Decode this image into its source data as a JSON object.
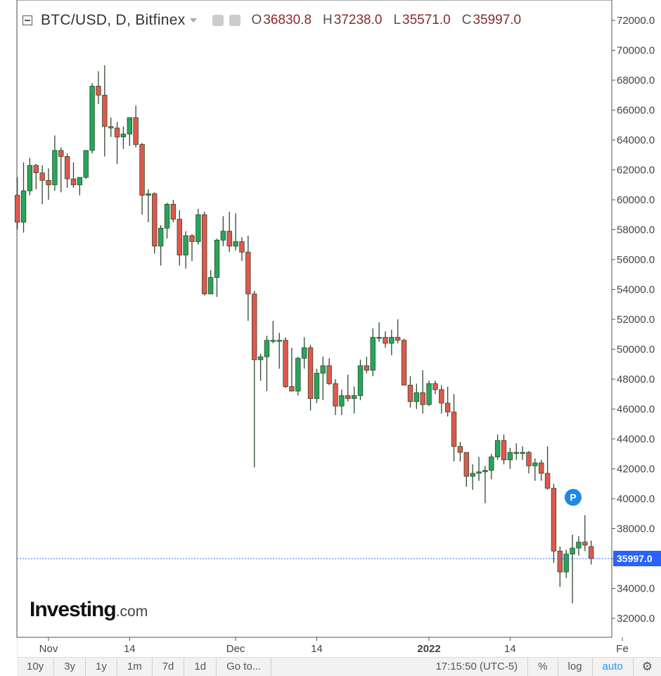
{
  "header": {
    "symbol": "BTC/USD, D, Bitfinex",
    "ohlc": [
      {
        "label": "O",
        "value": "36830.8"
      },
      {
        "label": "H",
        "value": "37238.0"
      },
      {
        "label": "L",
        "value": "35571.0"
      },
      {
        "label": "C",
        "value": "35997.0"
      }
    ]
  },
  "logo": {
    "main": "Investing",
    "suffix": ".com"
  },
  "badge": "P",
  "last_price_label": "35997.0",
  "footer": {
    "ranges": [
      "10y",
      "3y",
      "1y",
      "1m",
      "7d",
      "1d",
      "Go to..."
    ],
    "time": "17:15:50 (UTC-5)",
    "options": [
      "%",
      "log",
      "auto"
    ]
  },
  "colors": {
    "up": "#26a65b",
    "down": "#e0584d",
    "last_price": "#2962ff",
    "badge": "#1e88e5"
  },
  "icons": [
    "collapse-icon",
    "caret-down-icon",
    "settings-icon",
    "gear-icon"
  ],
  "chart_data": {
    "type": "candlestick",
    "ylim": [
      31000,
      72800
    ],
    "y_ticks": [
      "72000.0",
      "70000.0",
      "68000.0",
      "66000.0",
      "64000.0",
      "62000.0",
      "60000.0",
      "58000.0",
      "56000.0",
      "54000.0",
      "52000.0",
      "50000.0",
      "48000.0",
      "46000.0",
      "44000.0",
      "42000.0",
      "40000.0",
      "38000.0",
      "36000.0",
      "34000.0",
      "32000.0"
    ],
    "x_ticks": [
      {
        "label": "Nov",
        "date": "2021-11-01"
      },
      {
        "label": "14",
        "date": "2021-11-14"
      },
      {
        "label": "Dec",
        "date": "2021-12-01"
      },
      {
        "label": "14",
        "date": "2021-12-14"
      },
      {
        "label": "2022",
        "date": "2022-01-01"
      },
      {
        "label": "14",
        "date": "2022-01-14"
      },
      {
        "label": "Fe",
        "date": "2022-02-01"
      }
    ],
    "last_price": 35997,
    "candles": [
      {
        "date": "2021-10-27",
        "o": 60300,
        "h": 61500,
        "l": 58000,
        "c": 58500
      },
      {
        "date": "2021-10-28",
        "o": 58500,
        "h": 62500,
        "l": 57800,
        "c": 60600
      },
      {
        "date": "2021-10-29",
        "o": 60600,
        "h": 62800,
        "l": 60300,
        "c": 62300
      },
      {
        "date": "2021-10-30",
        "o": 62300,
        "h": 62400,
        "l": 60700,
        "c": 61800
      },
      {
        "date": "2021-10-31",
        "o": 61800,
        "h": 62300,
        "l": 59700,
        "c": 61300
      },
      {
        "date": "2021-11-01",
        "o": 61300,
        "h": 62100,
        "l": 60000,
        "c": 61000
      },
      {
        "date": "2021-11-02",
        "o": 61000,
        "h": 64300,
        "l": 60600,
        "c": 63300
      },
      {
        "date": "2021-11-03",
        "o": 63300,
        "h": 63500,
        "l": 60500,
        "c": 62900
      },
      {
        "date": "2021-11-04",
        "o": 62900,
        "h": 63100,
        "l": 60800,
        "c": 61400
      },
      {
        "date": "2021-11-05",
        "o": 61400,
        "h": 62500,
        "l": 60800,
        "c": 61000
      },
      {
        "date": "2021-11-06",
        "o": 61000,
        "h": 61500,
        "l": 60300,
        "c": 61500
      },
      {
        "date": "2021-11-07",
        "o": 61500,
        "h": 63300,
        "l": 61400,
        "c": 63300
      },
      {
        "date": "2021-11-08",
        "o": 63300,
        "h": 67800,
        "l": 63100,
        "c": 67600
      },
      {
        "date": "2021-11-09",
        "o": 67600,
        "h": 68600,
        "l": 66400,
        "c": 67000
      },
      {
        "date": "2021-11-10",
        "o": 67000,
        "h": 69000,
        "l": 62900,
        "c": 64900
      },
      {
        "date": "2021-11-11",
        "o": 64900,
        "h": 65500,
        "l": 64200,
        "c": 64800
      },
      {
        "date": "2021-11-12",
        "o": 64800,
        "h": 65200,
        "l": 62400,
        "c": 64200
      },
      {
        "date": "2021-11-13",
        "o": 64200,
        "h": 64900,
        "l": 63400,
        "c": 64400
      },
      {
        "date": "2021-11-14",
        "o": 64400,
        "h": 65500,
        "l": 63600,
        "c": 65500
      },
      {
        "date": "2021-11-15",
        "o": 65500,
        "h": 66300,
        "l": 63500,
        "c": 63700
      },
      {
        "date": "2021-11-16",
        "o": 63700,
        "h": 63800,
        "l": 59000,
        "c": 60300
      },
      {
        "date": "2021-11-17",
        "o": 60300,
        "h": 60700,
        "l": 58500,
        "c": 60400
      },
      {
        "date": "2021-11-18",
        "o": 60400,
        "h": 60500,
        "l": 56400,
        "c": 56900
      },
      {
        "date": "2021-11-19",
        "o": 56900,
        "h": 58300,
        "l": 55600,
        "c": 58100
      },
      {
        "date": "2021-11-20",
        "o": 58100,
        "h": 59800,
        "l": 57400,
        "c": 59700
      },
      {
        "date": "2021-11-21",
        "o": 59700,
        "h": 60000,
        "l": 58500,
        "c": 58700
      },
      {
        "date": "2021-11-22",
        "o": 58700,
        "h": 59300,
        "l": 55600,
        "c": 56300
      },
      {
        "date": "2021-11-23",
        "o": 56300,
        "h": 57900,
        "l": 55400,
        "c": 57600
      },
      {
        "date": "2021-11-24",
        "o": 57600,
        "h": 57700,
        "l": 55900,
        "c": 57200
      },
      {
        "date": "2021-11-25",
        "o": 57200,
        "h": 59400,
        "l": 57000,
        "c": 59000
      },
      {
        "date": "2021-11-26",
        "o": 59000,
        "h": 59200,
        "l": 53600,
        "c": 53700
      },
      {
        "date": "2021-11-27",
        "o": 53700,
        "h": 55300,
        "l": 53700,
        "c": 54800
      },
      {
        "date": "2021-11-28",
        "o": 54800,
        "h": 57400,
        "l": 53500,
        "c": 57300
      },
      {
        "date": "2021-11-29",
        "o": 57300,
        "h": 58900,
        "l": 56900,
        "c": 57900
      },
      {
        "date": "2021-11-30",
        "o": 57900,
        "h": 59200,
        "l": 56500,
        "c": 56900
      },
      {
        "date": "2021-12-01",
        "o": 56900,
        "h": 59100,
        "l": 56600,
        "c": 57200
      },
      {
        "date": "2021-12-02",
        "o": 57200,
        "h": 57500,
        "l": 55900,
        "c": 56500
      },
      {
        "date": "2021-12-03",
        "o": 56500,
        "h": 57600,
        "l": 51900,
        "c": 53700
      },
      {
        "date": "2021-12-04",
        "o": 53700,
        "h": 53900,
        "l": 42100,
        "c": 49300
      },
      {
        "date": "2021-12-05",
        "o": 49300,
        "h": 49700,
        "l": 47900,
        "c": 49500
      },
      {
        "date": "2021-12-06",
        "o": 49500,
        "h": 50900,
        "l": 47200,
        "c": 50600
      },
      {
        "date": "2021-12-07",
        "o": 50600,
        "h": 51900,
        "l": 50400,
        "c": 50600
      },
      {
        "date": "2021-12-08",
        "o": 50600,
        "h": 51100,
        "l": 48700,
        "c": 50600
      },
      {
        "date": "2021-12-09",
        "o": 50600,
        "h": 50800,
        "l": 47400,
        "c": 47500
      },
      {
        "date": "2021-12-10",
        "o": 47500,
        "h": 50100,
        "l": 47200,
        "c": 47200
      },
      {
        "date": "2021-12-11",
        "o": 47200,
        "h": 49500,
        "l": 46900,
        "c": 49400
      },
      {
        "date": "2021-12-12",
        "o": 49400,
        "h": 50800,
        "l": 48700,
        "c": 50100
      },
      {
        "date": "2021-12-13",
        "o": 50100,
        "h": 50300,
        "l": 45900,
        "c": 46700
      },
      {
        "date": "2021-12-14",
        "o": 46700,
        "h": 48700,
        "l": 46400,
        "c": 48400
      },
      {
        "date": "2021-12-15",
        "o": 48400,
        "h": 49500,
        "l": 46600,
        "c": 48900
      },
      {
        "date": "2021-12-16",
        "o": 48900,
        "h": 49400,
        "l": 47600,
        "c": 47700
      },
      {
        "date": "2021-12-17",
        "o": 47700,
        "h": 48000,
        "l": 45600,
        "c": 46200
      },
      {
        "date": "2021-12-18",
        "o": 46200,
        "h": 47300,
        "l": 45600,
        "c": 46900
      },
      {
        "date": "2021-12-19",
        "o": 46900,
        "h": 48300,
        "l": 46500,
        "c": 46700
      },
      {
        "date": "2021-12-20",
        "o": 46700,
        "h": 47500,
        "l": 45700,
        "c": 46900
      },
      {
        "date": "2021-12-21",
        "o": 46900,
        "h": 49300,
        "l": 46600,
        "c": 48900
      },
      {
        "date": "2021-12-22",
        "o": 48900,
        "h": 49500,
        "l": 48400,
        "c": 48600
      },
      {
        "date": "2021-12-23",
        "o": 48600,
        "h": 51400,
        "l": 48200,
        "c": 50800
      },
      {
        "date": "2021-12-24",
        "o": 50800,
        "h": 51800,
        "l": 50500,
        "c": 50800
      },
      {
        "date": "2021-12-25",
        "o": 50800,
        "h": 51200,
        "l": 50100,
        "c": 50400
      },
      {
        "date": "2021-12-26",
        "o": 50400,
        "h": 51300,
        "l": 49600,
        "c": 50800
      },
      {
        "date": "2021-12-27",
        "o": 50800,
        "h": 52000,
        "l": 50400,
        "c": 50600
      },
      {
        "date": "2021-12-28",
        "o": 50600,
        "h": 50700,
        "l": 47700,
        "c": 47600
      },
      {
        "date": "2021-12-29",
        "o": 47600,
        "h": 48200,
        "l": 46100,
        "c": 46500
      },
      {
        "date": "2021-12-30",
        "o": 46500,
        "h": 47700,
        "l": 46000,
        "c": 47100
      },
      {
        "date": "2021-12-31",
        "o": 47100,
        "h": 48600,
        "l": 45700,
        "c": 46300
      },
      {
        "date": "2022-01-01",
        "o": 46300,
        "h": 47900,
        "l": 46200,
        "c": 47700
      },
      {
        "date": "2022-01-02",
        "o": 47700,
        "h": 47900,
        "l": 47000,
        "c": 47300
      },
      {
        "date": "2022-01-03",
        "o": 47300,
        "h": 47600,
        "l": 45700,
        "c": 46400
      },
      {
        "date": "2022-01-04",
        "o": 46400,
        "h": 47500,
        "l": 45500,
        "c": 45800
      },
      {
        "date": "2022-01-05",
        "o": 45800,
        "h": 47000,
        "l": 42500,
        "c": 43500
      },
      {
        "date": "2022-01-06",
        "o": 43500,
        "h": 43800,
        "l": 42500,
        "c": 43100
      },
      {
        "date": "2022-01-07",
        "o": 43100,
        "h": 43100,
        "l": 40800,
        "c": 41500
      },
      {
        "date": "2022-01-08",
        "o": 41500,
        "h": 42300,
        "l": 40600,
        "c": 41700
      },
      {
        "date": "2022-01-09",
        "o": 41700,
        "h": 42800,
        "l": 41200,
        "c": 41800
      },
      {
        "date": "2022-01-10",
        "o": 41800,
        "h": 42200,
        "l": 39700,
        "c": 41900
      },
      {
        "date": "2022-01-11",
        "o": 41900,
        "h": 43000,
        "l": 41300,
        "c": 42800
      },
      {
        "date": "2022-01-12",
        "o": 42800,
        "h": 44300,
        "l": 42600,
        "c": 43900
      },
      {
        "date": "2022-01-13",
        "o": 43900,
        "h": 44300,
        "l": 42300,
        "c": 42600
      },
      {
        "date": "2022-01-14",
        "o": 42600,
        "h": 43400,
        "l": 42000,
        "c": 43100
      },
      {
        "date": "2022-01-15",
        "o": 43100,
        "h": 43700,
        "l": 42600,
        "c": 43100
      },
      {
        "date": "2022-01-16",
        "o": 43100,
        "h": 43500,
        "l": 42600,
        "c": 43100
      },
      {
        "date": "2022-01-17",
        "o": 43100,
        "h": 43200,
        "l": 41700,
        "c": 42200
      },
      {
        "date": "2022-01-18",
        "o": 42200,
        "h": 42700,
        "l": 41200,
        "c": 42400
      },
      {
        "date": "2022-01-19",
        "o": 42400,
        "h": 42600,
        "l": 41200,
        "c": 41700
      },
      {
        "date": "2022-01-20",
        "o": 41700,
        "h": 43500,
        "l": 40600,
        "c": 40700
      },
      {
        "date": "2022-01-21",
        "o": 40700,
        "h": 41000,
        "l": 35700,
        "c": 36500
      },
      {
        "date": "2022-01-22",
        "o": 36500,
        "h": 36800,
        "l": 34100,
        "c": 35100
      },
      {
        "date": "2022-01-23",
        "o": 35100,
        "h": 36600,
        "l": 34700,
        "c": 36300
      },
      {
        "date": "2022-01-24",
        "o": 36300,
        "h": 37600,
        "l": 33000,
        "c": 36700
      },
      {
        "date": "2022-01-25",
        "o": 36700,
        "h": 37500,
        "l": 36200,
        "c": 37100
      },
      {
        "date": "2022-01-26",
        "o": 37100,
        "h": 38900,
        "l": 36500,
        "c": 36900
      },
      {
        "date": "2022-01-27",
        "o": 36800,
        "h": 37200,
        "l": 35600,
        "c": 36000
      }
    ]
  }
}
